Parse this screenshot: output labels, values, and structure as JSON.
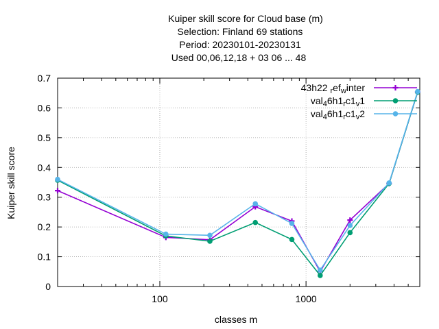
{
  "chart_data": {
    "type": "line",
    "title_lines": [
      "Kuiper skill score  for Cloud base (m)",
      "Selection: Finland     69 stations",
      "Period: 20230101-20230131",
      "Used  00,06,12,18  + 03 06 ... 48"
    ],
    "xlabel": "classes m",
    "ylabel": "Kuiper skill score",
    "xscale": "log",
    "xlim": [
      20,
      6000
    ],
    "ylim": [
      0,
      0.7
    ],
    "x_ticks": [
      100,
      1000
    ],
    "x_tick_labels": [
      "100",
      "1000"
    ],
    "y_ticks": [
      0,
      0.1,
      0.2,
      0.3,
      0.4,
      0.5,
      0.6,
      0.7
    ],
    "y_tick_labels": [
      "0",
      "0.1",
      "0.2",
      "0.3",
      "0.4",
      "0.5",
      "0.6",
      "0.7"
    ],
    "grid": true,
    "legend_position": "top-right",
    "x": [
      20,
      110,
      220,
      450,
      800,
      1250,
      2000,
      3700,
      5800
    ],
    "series": [
      {
        "name": "43h22 ref winter",
        "legend_parts": [
          [
            "43h22 ",
            ""
          ],
          [
            "r",
            "sub"
          ],
          [
            "ef",
            ""
          ],
          [
            "w",
            "sub"
          ],
          [
            "inter",
            ""
          ]
        ],
        "color": "#9400d3",
        "marker": "plus",
        "values": [
          0.322,
          0.165,
          0.157,
          0.268,
          0.22,
          0.05,
          0.223,
          0.346,
          0.653
        ]
      },
      {
        "name": "val46h1 rc1 v1",
        "legend_parts": [
          [
            "val",
            ""
          ],
          [
            "4",
            "sub"
          ],
          [
            "6h1",
            ""
          ],
          [
            "r",
            "sub"
          ],
          [
            "c1",
            ""
          ],
          [
            "v",
            "sub"
          ],
          [
            "1",
            ""
          ]
        ],
        "color": "#009e73",
        "marker": "circle",
        "values": [
          0.357,
          0.17,
          0.152,
          0.215,
          0.158,
          0.037,
          0.181,
          0.346,
          0.653
        ]
      },
      {
        "name": "val46h1 rc1 v2",
        "legend_parts": [
          [
            "val",
            ""
          ],
          [
            "4",
            "sub"
          ],
          [
            "6h1",
            ""
          ],
          [
            "r",
            "sub"
          ],
          [
            "c1",
            ""
          ],
          [
            "v",
            "sub"
          ],
          [
            "2",
            ""
          ]
        ],
        "color": "#56b4e9",
        "marker": "circle",
        "values": [
          0.36,
          0.176,
          0.172,
          0.278,
          0.212,
          0.055,
          0.205,
          0.348,
          0.655
        ]
      }
    ]
  }
}
